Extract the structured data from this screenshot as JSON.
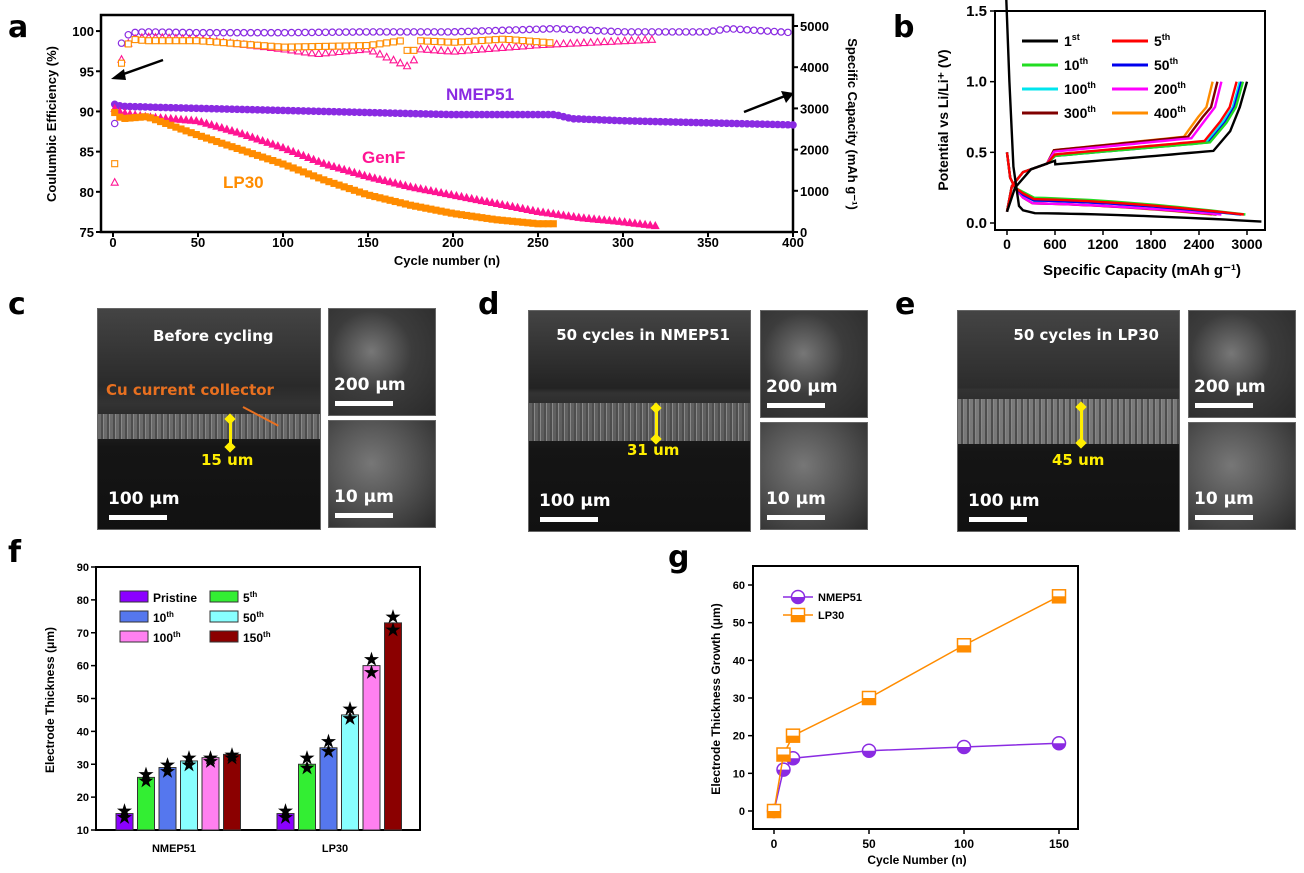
{
  "panel_letters": {
    "a": "a",
    "b": "b",
    "c": "c",
    "d": "d",
    "e": "e",
    "f": "f",
    "g": "g"
  },
  "chart_data": [
    {
      "id": "a",
      "type": "scatter",
      "xlabel": "Cycle number (n)",
      "ylabel": "Coulumbic Efficiency (%)",
      "y2label": "Specific Capacity (mAh g⁻¹)",
      "xlim": [
        0,
        400
      ],
      "ylim": [
        75,
        102
      ],
      "y2lim": [
        0,
        5000
      ],
      "xticks": [
        0,
        50,
        100,
        150,
        200,
        250,
        300,
        350,
        400
      ],
      "yticks": [
        75,
        80,
        85,
        90,
        95,
        100
      ],
      "y2ticks": [
        0,
        1000,
        2000,
        3000,
        4000,
        5000
      ],
      "annotations": {
        "nmep51": "NMEP51",
        "genf": "GenF",
        "lp30": "LP30"
      },
      "colors": {
        "NMEP51": "#8a2be2",
        "GenF": "#ff1493",
        "LP30": "#ff8c00"
      },
      "series": [
        {
          "name": "NMEP51",
          "kind": "CE",
          "axis": "left",
          "x": [
            1,
            3,
            5,
            10,
            20,
            50,
            100,
            150,
            200,
            260,
            300,
            350,
            362,
            400
          ],
          "y": [
            88.5,
            94.0,
            98.5,
            99.8,
            99.9,
            99.8,
            99.8,
            99.9,
            99.9,
            100.3,
            99.9,
            99.9,
            100.3,
            99.8
          ]
        },
        {
          "name": "GenF",
          "kind": "CE",
          "axis": "left",
          "x": [
            1,
            3,
            5,
            10,
            20,
            50,
            100,
            120,
            150,
            175,
            180,
            200,
            250,
            300,
            320
          ],
          "y": [
            81.2,
            89.5,
            96.5,
            99.0,
            99.3,
            99.0,
            97.8,
            97.2,
            97.8,
            95.5,
            97.8,
            97.5,
            98.3,
            98.8,
            99.0
          ]
        },
        {
          "name": "LP30",
          "kind": "CE",
          "axis": "left",
          "x": [
            1,
            3,
            5,
            10,
            20,
            50,
            100,
            150,
            170,
            175,
            180,
            200,
            230,
            260
          ],
          "y": [
            83.5,
            88.5,
            96.0,
            99.0,
            98.8,
            98.8,
            98.0,
            98.2,
            98.8,
            96.8,
            98.8,
            98.6,
            99.0,
            98.5
          ]
        },
        {
          "name": "NMEP51",
          "kind": "capacity",
          "axis": "right",
          "x": [
            1,
            5,
            50,
            100,
            150,
            200,
            260,
            270,
            300,
            350,
            400
          ],
          "y": [
            3100,
            3050,
            3000,
            2950,
            2900,
            2850,
            2850,
            2750,
            2700,
            2650,
            2600
          ]
        },
        {
          "name": "GenF",
          "kind": "capacity",
          "axis": "right",
          "x": [
            1,
            5,
            20,
            50,
            75,
            100,
            125,
            150,
            175,
            200,
            225,
            250,
            275,
            300,
            320
          ],
          "y": [
            3000,
            2900,
            2800,
            2700,
            2400,
            2050,
            1650,
            1350,
            1100,
            900,
            700,
            500,
            350,
            250,
            150
          ]
        },
        {
          "name": "LP30",
          "kind": "capacity",
          "axis": "right",
          "x": [
            1,
            5,
            20,
            50,
            75,
            100,
            125,
            150,
            175,
            200,
            225,
            250,
            260
          ],
          "y": [
            2900,
            2750,
            2800,
            2350,
            2000,
            1650,
            1250,
            900,
            650,
            450,
            300,
            200,
            200
          ]
        }
      ]
    },
    {
      "id": "b",
      "type": "line",
      "xlabel": "Specific Capacity (mAh g⁻¹)",
      "ylabel": "Potential vs Li/Li⁺ (V)",
      "xlim": [
        -150,
        3200
      ],
      "ylim": [
        0,
        1.5
      ],
      "xticks": [
        0,
        600,
        1200,
        1800,
        2400,
        3000
      ],
      "yticks": [
        0.0,
        0.5,
        1.0,
        1.5
      ],
      "series": [
        {
          "name": "1st",
          "ordinal": "1",
          "sup": "st",
          "color": "#000000",
          "lithiation_end": 3180,
          "delithiation_end": 3000,
          "plateau_lith": 0.07,
          "plateau_delith": 0.45
        },
        {
          "name": "5th",
          "ordinal": "5",
          "sup": "th",
          "color": "#ff0000",
          "lithiation_end": 2960,
          "delithiation_end": 2870,
          "plateau_lith": 0.17,
          "plateau_delith": 0.52
        },
        {
          "name": "10th",
          "ordinal": "10",
          "sup": "th",
          "color": "#22dd22",
          "lithiation_end": 2980,
          "delithiation_end": 2950,
          "plateau_lith": 0.18,
          "plateau_delith": 0.51
        },
        {
          "name": "50th",
          "ordinal": "50",
          "sup": "th",
          "color": "#0000ee",
          "lithiation_end": 2930,
          "delithiation_end": 2930,
          "plateau_lith": 0.16,
          "plateau_delith": 0.51
        },
        {
          "name": "100th",
          "ordinal": "100",
          "sup": "th",
          "color": "#00e5ee",
          "lithiation_end": 2920,
          "delithiation_end": 2910,
          "plateau_lith": 0.16,
          "plateau_delith": 0.52
        },
        {
          "name": "200th",
          "ordinal": "200",
          "sup": "th",
          "color": "#ff00ff",
          "lithiation_end": 2680,
          "delithiation_end": 2680,
          "plateau_lith": 0.14,
          "plateau_delith": 0.54
        },
        {
          "name": "300th",
          "ordinal": "300",
          "sup": "th",
          "color": "#800000",
          "lithiation_end": 2620,
          "delithiation_end": 2630,
          "plateau_lith": 0.14,
          "plateau_delith": 0.55
        },
        {
          "name": "400th",
          "ordinal": "400",
          "sup": "th",
          "color": "#ff8c00",
          "lithiation_end": 2560,
          "delithiation_end": 2570,
          "plateau_lith": 0.14,
          "plateau_delith": 0.55
        }
      ]
    },
    {
      "id": "f",
      "type": "bar",
      "ylabel": "Electrode Thickness (μm)",
      "ylim": [
        10,
        90
      ],
      "yticks": [
        10,
        20,
        30,
        40,
        50,
        60,
        70,
        80,
        90
      ],
      "categories": [
        "NMEP51",
        "LP30"
      ],
      "series": [
        {
          "name": "Pristine",
          "ordinal": "Pristine",
          "sup": "",
          "color": "#8b00ff",
          "values": [
            15,
            15
          ],
          "points": [
            [
              16,
              14
            ],
            [
              16,
              14
            ]
          ]
        },
        {
          "name": "5th",
          "ordinal": "5",
          "sup": "th",
          "color": "#33ee33",
          "values": [
            26,
            30
          ],
          "points": [
            [
              27,
              25
            ],
            [
              32,
              29
            ]
          ]
        },
        {
          "name": "10th",
          "ordinal": "10",
          "sup": "th",
          "color": "#5577ee",
          "values": [
            29,
            35
          ],
          "points": [
            [
              30,
              28
            ],
            [
              37,
              34
            ]
          ]
        },
        {
          "name": "50th",
          "ordinal": "50",
          "sup": "th",
          "color": "#88ffff",
          "values": [
            31,
            45
          ],
          "points": [
            [
              32,
              30
            ],
            [
              47,
              44
            ]
          ]
        },
        {
          "name": "100th",
          "ordinal": "100",
          "sup": "th",
          "color": "#ff80f0",
          "values": [
            32,
            60
          ],
          "points": [
            [
              32,
              31
            ],
            [
              62,
              58
            ]
          ]
        },
        {
          "name": "150th",
          "ordinal": "150",
          "sup": "th",
          "color": "#8b0000",
          "values": [
            33,
            73
          ],
          "points": [
            [
              33,
              32
            ],
            [
              75,
              71
            ]
          ]
        }
      ]
    },
    {
      "id": "g",
      "type": "line",
      "xlabel": "Cycle Number (n)",
      "ylabel": "Electrode Thickness Growth (μm)",
      "xlim": [
        -7,
        160
      ],
      "ylim": [
        -5,
        65
      ],
      "xticks": [
        0,
        50,
        100,
        150
      ],
      "yticks": [
        0,
        10,
        20,
        30,
        40,
        50,
        60
      ],
      "x": [
        0,
        5,
        10,
        50,
        100,
        150
      ],
      "series": [
        {
          "name": "NMEP51",
          "color": "#8a2be2",
          "marker": "circle",
          "values": [
            0,
            11,
            14,
            16,
            17,
            18
          ]
        },
        {
          "name": "LP30",
          "color": "#ff8c00",
          "marker": "square",
          "values": [
            0,
            15,
            20,
            30,
            44,
            57
          ]
        }
      ]
    }
  ],
  "sem_panels": [
    {
      "id": "c",
      "caption": "Before cycling",
      "cu_label": "Cu current collector",
      "thickness": "15 um",
      "scale_main": "100 μm",
      "scale_top": "200 μm",
      "scale_bottom": "10 μm"
    },
    {
      "id": "d",
      "caption": "50 cycles in NMEP51",
      "thickness": "31 um",
      "scale_main": "100 μm",
      "scale_top": "200 μm",
      "scale_bottom": "10 μm"
    },
    {
      "id": "e",
      "caption": "50 cycles in LP30",
      "thickness": "45 um",
      "scale_main": "100 μm",
      "scale_top": "200 μm",
      "scale_bottom": "10 μm"
    }
  ]
}
